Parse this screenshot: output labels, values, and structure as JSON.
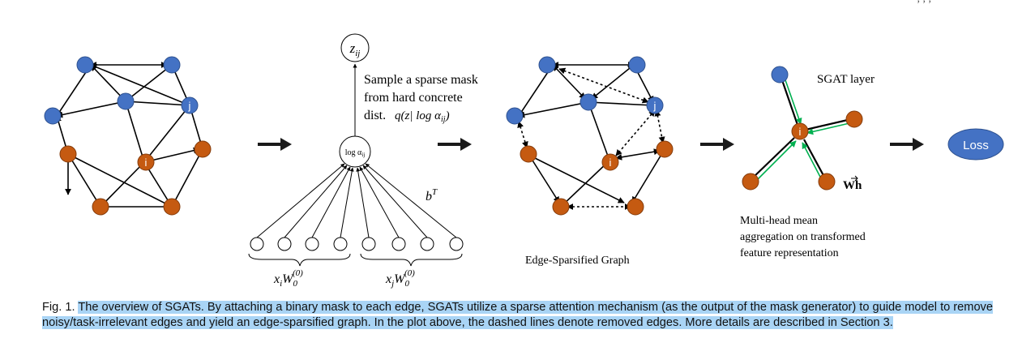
{
  "colors": {
    "blue_node": "#4472c4",
    "orange_node": "#c55a11",
    "highlight": "#a9d4f5",
    "green_edge": "#00b050",
    "loss_fill": "#4472c4"
  },
  "figure": {
    "top_mark": ", , ,",
    "input_graph": {
      "label_j": "j",
      "label_i": "i"
    },
    "mask_generator": {
      "z_node": "z",
      "z_sub": "ij",
      "sample_text": [
        "Sample a sparse mask",
        "from hard concrete",
        "dist."
      ],
      "dist_formula": "q(z| log α",
      "dist_sub": "ij",
      "dist_close": ")",
      "log_node": "log α",
      "log_sub": "ij",
      "bias_label": "b",
      "bias_sup": "T",
      "xi_label": "x",
      "xi_sub": "i",
      "xj_sub": "j",
      "w_label": "W",
      "w_sub": "0",
      "w_sup": "(0)"
    },
    "sparsified_graph": {
      "label_j": "j",
      "label_i": "i",
      "caption": "Edge-Sparsified Graph"
    },
    "sgat_layer": {
      "title": "SGAT layer",
      "label_i": "i",
      "wh_label": "Wh",
      "description": [
        "Multi-head mean",
        "aggregation on transformed",
        "feature representation"
      ]
    },
    "loss_label": "Loss"
  },
  "caption": {
    "label": "Fig. 1.",
    "text": "The overview of SGATs. By attaching a binary mask to each edge, SGATs utilize a sparse attention mechanism (as the output of the mask generator) to guide model to remove noisy/task-irrelevant edges and yield an edge-sparsified graph. In the plot above, the dashed lines denote removed edges. More details are described in Section 3."
  }
}
